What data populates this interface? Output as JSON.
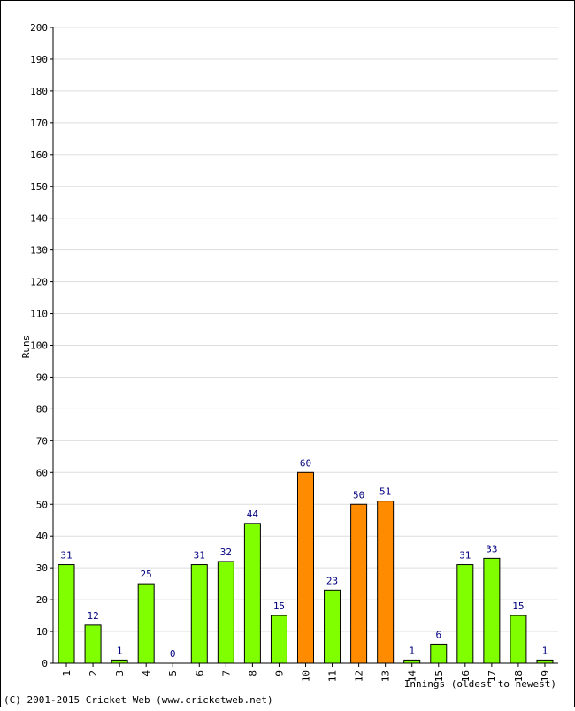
{
  "chart_data": {
    "type": "bar",
    "categories": [
      "1",
      "2",
      "3",
      "4",
      "5",
      "6",
      "7",
      "8",
      "9",
      "10",
      "11",
      "12",
      "13",
      "14",
      "15",
      "16",
      "17",
      "18",
      "19"
    ],
    "values": [
      31,
      12,
      1,
      25,
      0,
      31,
      32,
      44,
      15,
      60,
      23,
      50,
      51,
      1,
      6,
      31,
      33,
      15,
      1
    ],
    "highlight_threshold": 50,
    "colors": {
      "normal": "#80ff00",
      "fifty_plus": "#ff8c00",
      "value_label": "#000080",
      "grid": "#dddddd"
    },
    "ylabel": "Runs",
    "xlabel": "Innings (oldest to newest)",
    "ylim": [
      0,
      200
    ],
    "ytick_step": 10,
    "grid": true
  },
  "footer": "(C) 2001-2015 Cricket Web (www.cricketweb.net)"
}
